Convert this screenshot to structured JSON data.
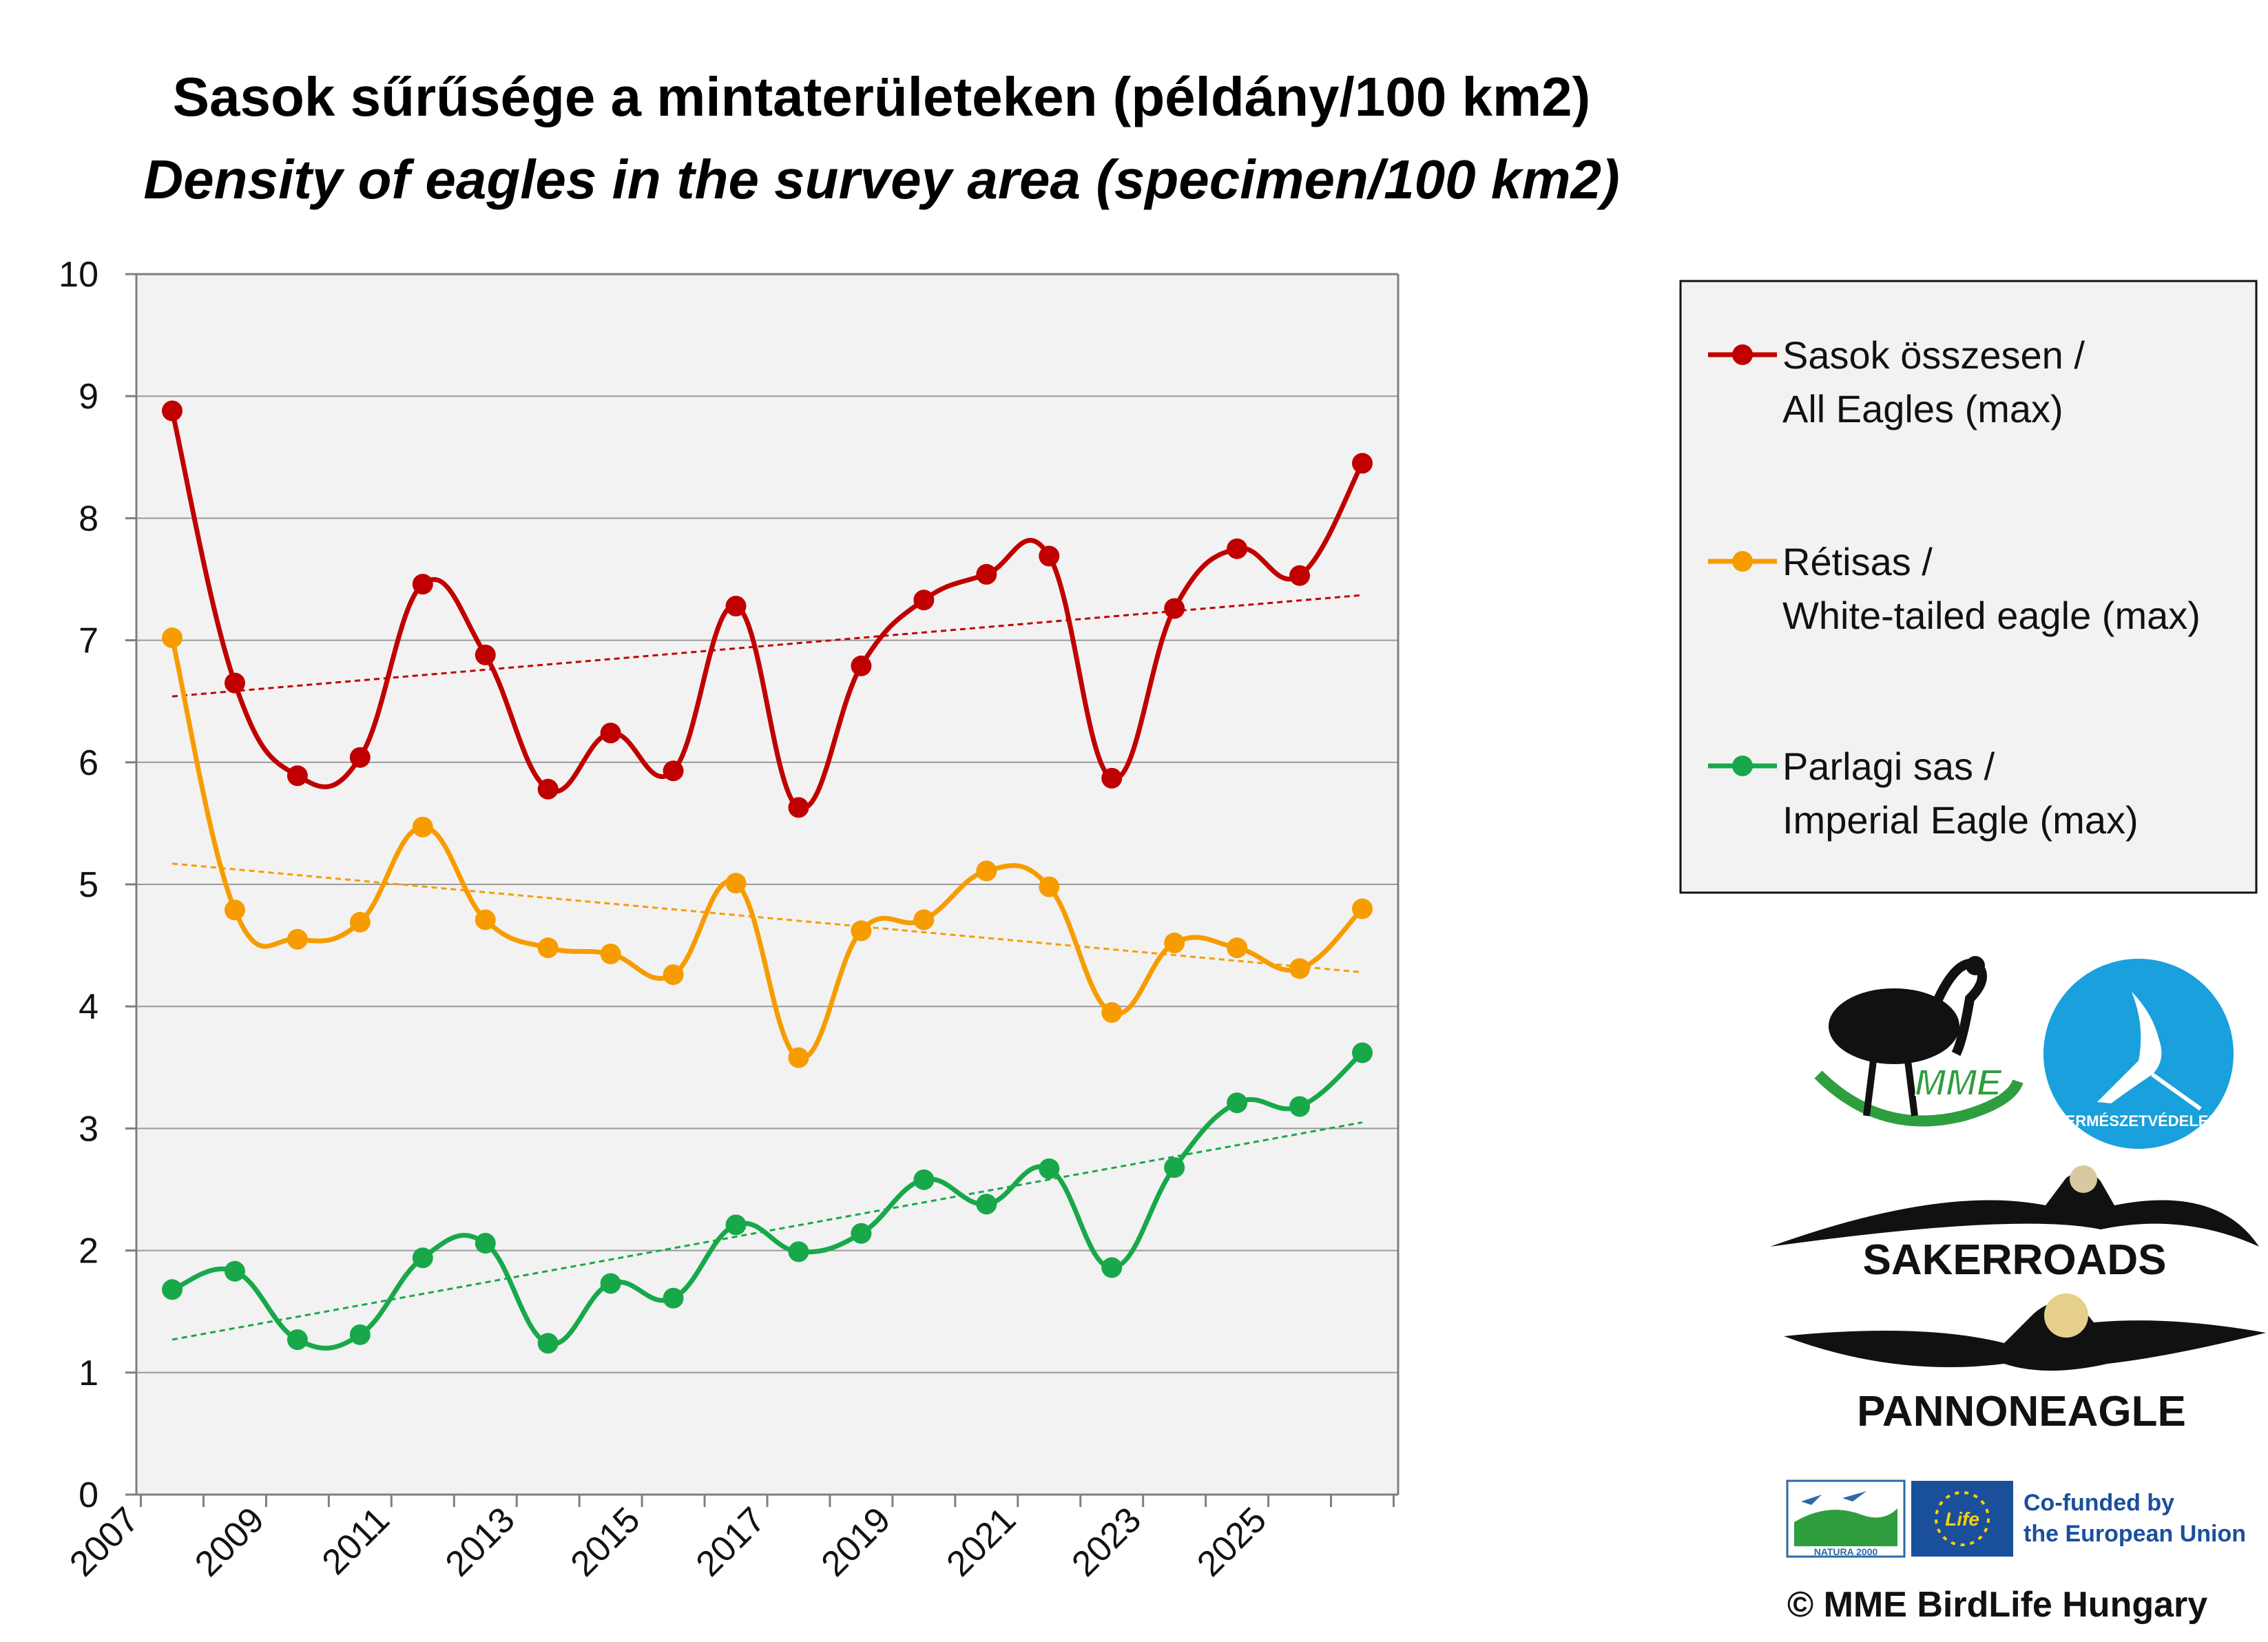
{
  "title_line1": "Sasok sűrűsége a mintaterületeken (példány/100 km2)",
  "title_line2": "Density of eagles in the survey area (specimen/100 km2)",
  "chart_data": {
    "type": "line",
    "x": [
      2007,
      2008,
      2009,
      2010,
      2011,
      2012,
      2013,
      2014,
      2015,
      2016,
      2017,
      2018,
      2019,
      2020,
      2021,
      2022,
      2023,
      2024,
      2025,
      2026
    ],
    "x_tick_labels": [
      "2007",
      "2009",
      "2011",
      "2013",
      "2015",
      "2017",
      "2019",
      "2021",
      "2023",
      "2025"
    ],
    "ylim": [
      0,
      10
    ],
    "y_ticks": [
      0,
      1,
      2,
      3,
      4,
      5,
      6,
      7,
      8,
      9,
      10
    ],
    "grid": "horizontal",
    "legend_position": "right",
    "series": [
      {
        "name_line1": "Sasok összesen /",
        "name_line2": "All Eagles (max)",
        "color": "#c00000",
        "values": [
          8.88,
          6.65,
          5.89,
          6.04,
          7.46,
          6.88,
          5.78,
          6.24,
          5.93,
          7.28,
          5.63,
          6.79,
          7.33,
          7.54,
          7.69,
          5.87,
          7.26,
          7.75,
          7.53,
          8.45
        ],
        "trend": [
          6.54,
          7.37
        ]
      },
      {
        "name_line1": "Rétisas /",
        "name_line2": "White-tailed eagle (max)",
        "color": "#f79c00",
        "values": [
          7.02,
          4.79,
          4.55,
          4.69,
          5.47,
          4.71,
          4.48,
          4.43,
          4.26,
          5.01,
          3.58,
          4.62,
          4.71,
          5.11,
          4.98,
          3.95,
          4.52,
          4.48,
          4.31,
          4.8
        ],
        "trend": [
          5.17,
          4.28
        ]
      },
      {
        "name_line1": "Parlagi sas /",
        "name_line2": "Imperial Eagle (max)",
        "color": "#18a84a",
        "values": [
          1.68,
          1.83,
          1.27,
          1.31,
          1.94,
          2.06,
          1.24,
          1.73,
          1.61,
          2.21,
          1.99,
          2.14,
          2.58,
          2.38,
          2.67,
          1.86,
          2.68,
          3.21,
          3.18,
          3.62
        ],
        "trend": [
          1.27,
          3.05
        ]
      }
    ]
  },
  "logos": {
    "mme": "MME",
    "termeszetvedelem": "TERMÉSZETVÉDELEM",
    "sakerroads": "SAKERROADS",
    "pannoneagle": "PANNONEAGLE",
    "natura": "NATURA 2000",
    "life": "Life",
    "cofunded_line1": "Co-funded by",
    "cofunded_line2": "the European Union"
  },
  "copyright": "© MME BirdLife Hungary"
}
